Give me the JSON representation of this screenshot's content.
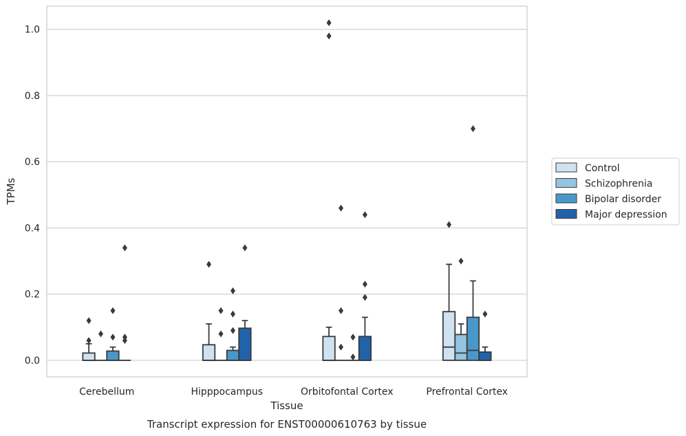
{
  "chart_data": {
    "type": "box",
    "title": "Transcript expression for ENST00000610763 by tissue",
    "xlabel": "Tissue",
    "ylabel": "TPMs",
    "ylim": [
      -0.05,
      1.07
    ],
    "yticks": [
      0.0,
      0.2,
      0.4,
      0.6,
      0.8,
      1.0
    ],
    "ytick_labels": [
      "0.0",
      "0.2",
      "0.4",
      "0.6",
      "0.8",
      "1.0"
    ],
    "grid": "horizontal",
    "legend_position": "right",
    "categories": [
      "Cerebellum",
      "Hipppocampus",
      "Orbitofontal Cortex",
      "Prefrontal Cortex"
    ],
    "series": [
      {
        "name": "Control",
        "color": "#d0e1f2",
        "boxes": [
          {
            "q1": 0.0,
            "median": 0.0,
            "q3": 0.022,
            "whislo": 0.0,
            "whishi": 0.05,
            "fliers": [
              0.12,
              0.06
            ]
          },
          {
            "q1": 0.0,
            "median": 0.0,
            "q3": 0.047,
            "whislo": 0.0,
            "whishi": 0.11,
            "fliers": [
              0.29
            ]
          },
          {
            "q1": 0.0,
            "median": 0.0,
            "q3": 0.072,
            "whislo": 0.0,
            "whishi": 0.1,
            "fliers": [
              1.02,
              0.98
            ]
          },
          {
            "q1": 0.0,
            "median": 0.04,
            "q3": 0.147,
            "whislo": 0.0,
            "whishi": 0.29,
            "fliers": [
              0.41
            ]
          }
        ]
      },
      {
        "name": "Schizophrenia",
        "color": "#94c4df",
        "boxes": [
          {
            "q1": 0.0,
            "median": 0.0,
            "q3": 0.0,
            "whislo": 0.0,
            "whishi": 0.0,
            "fliers": [
              0.08
            ]
          },
          {
            "q1": 0.0,
            "median": 0.0,
            "q3": 0.0,
            "whislo": 0.0,
            "whishi": 0.0,
            "fliers": [
              0.15,
              0.08
            ]
          },
          {
            "q1": 0.0,
            "median": 0.0,
            "q3": 0.0,
            "whislo": 0.0,
            "whishi": 0.0,
            "fliers": [
              0.46,
              0.15,
              0.04
            ]
          },
          {
            "q1": 0.0,
            "median": 0.022,
            "q3": 0.078,
            "whislo": 0.0,
            "whishi": 0.11,
            "fliers": [
              0.3
            ]
          }
        ]
      },
      {
        "name": "Bipolar disorder",
        "color": "#4a98c9",
        "boxes": [
          {
            "q1": 0.0,
            "median": 0.0,
            "q3": 0.028,
            "whislo": 0.0,
            "whishi": 0.04,
            "fliers": [
              0.15,
              0.07
            ]
          },
          {
            "q1": 0.0,
            "median": 0.0,
            "q3": 0.03,
            "whislo": 0.0,
            "whishi": 0.04,
            "fliers": [
              0.21,
              0.14,
              0.09
            ]
          },
          {
            "q1": 0.0,
            "median": 0.0,
            "q3": 0.0,
            "whislo": 0.0,
            "whishi": 0.0,
            "fliers": [
              0.07,
              0.01
            ]
          },
          {
            "q1": 0.0,
            "median": 0.03,
            "q3": 0.13,
            "whislo": 0.0,
            "whishi": 0.24,
            "fliers": [
              0.7
            ]
          }
        ]
      },
      {
        "name": "Major depression",
        "color": "#2163aa",
        "boxes": [
          {
            "q1": 0.0,
            "median": 0.0,
            "q3": 0.0,
            "whislo": 0.0,
            "whishi": 0.0,
            "fliers": [
              0.34,
              0.07,
              0.06
            ]
          },
          {
            "q1": 0.0,
            "median": 0.0,
            "q3": 0.097,
            "whislo": 0.0,
            "whishi": 0.12,
            "fliers": [
              0.34
            ]
          },
          {
            "q1": 0.0,
            "median": 0.0,
            "q3": 0.072,
            "whislo": 0.0,
            "whishi": 0.13,
            "fliers": [
              0.44,
              0.23,
              0.19
            ]
          },
          {
            "q1": 0.0,
            "median": 0.0,
            "q3": 0.025,
            "whislo": 0.0,
            "whishi": 0.04,
            "fliers": [
              0.14
            ]
          }
        ]
      }
    ]
  }
}
